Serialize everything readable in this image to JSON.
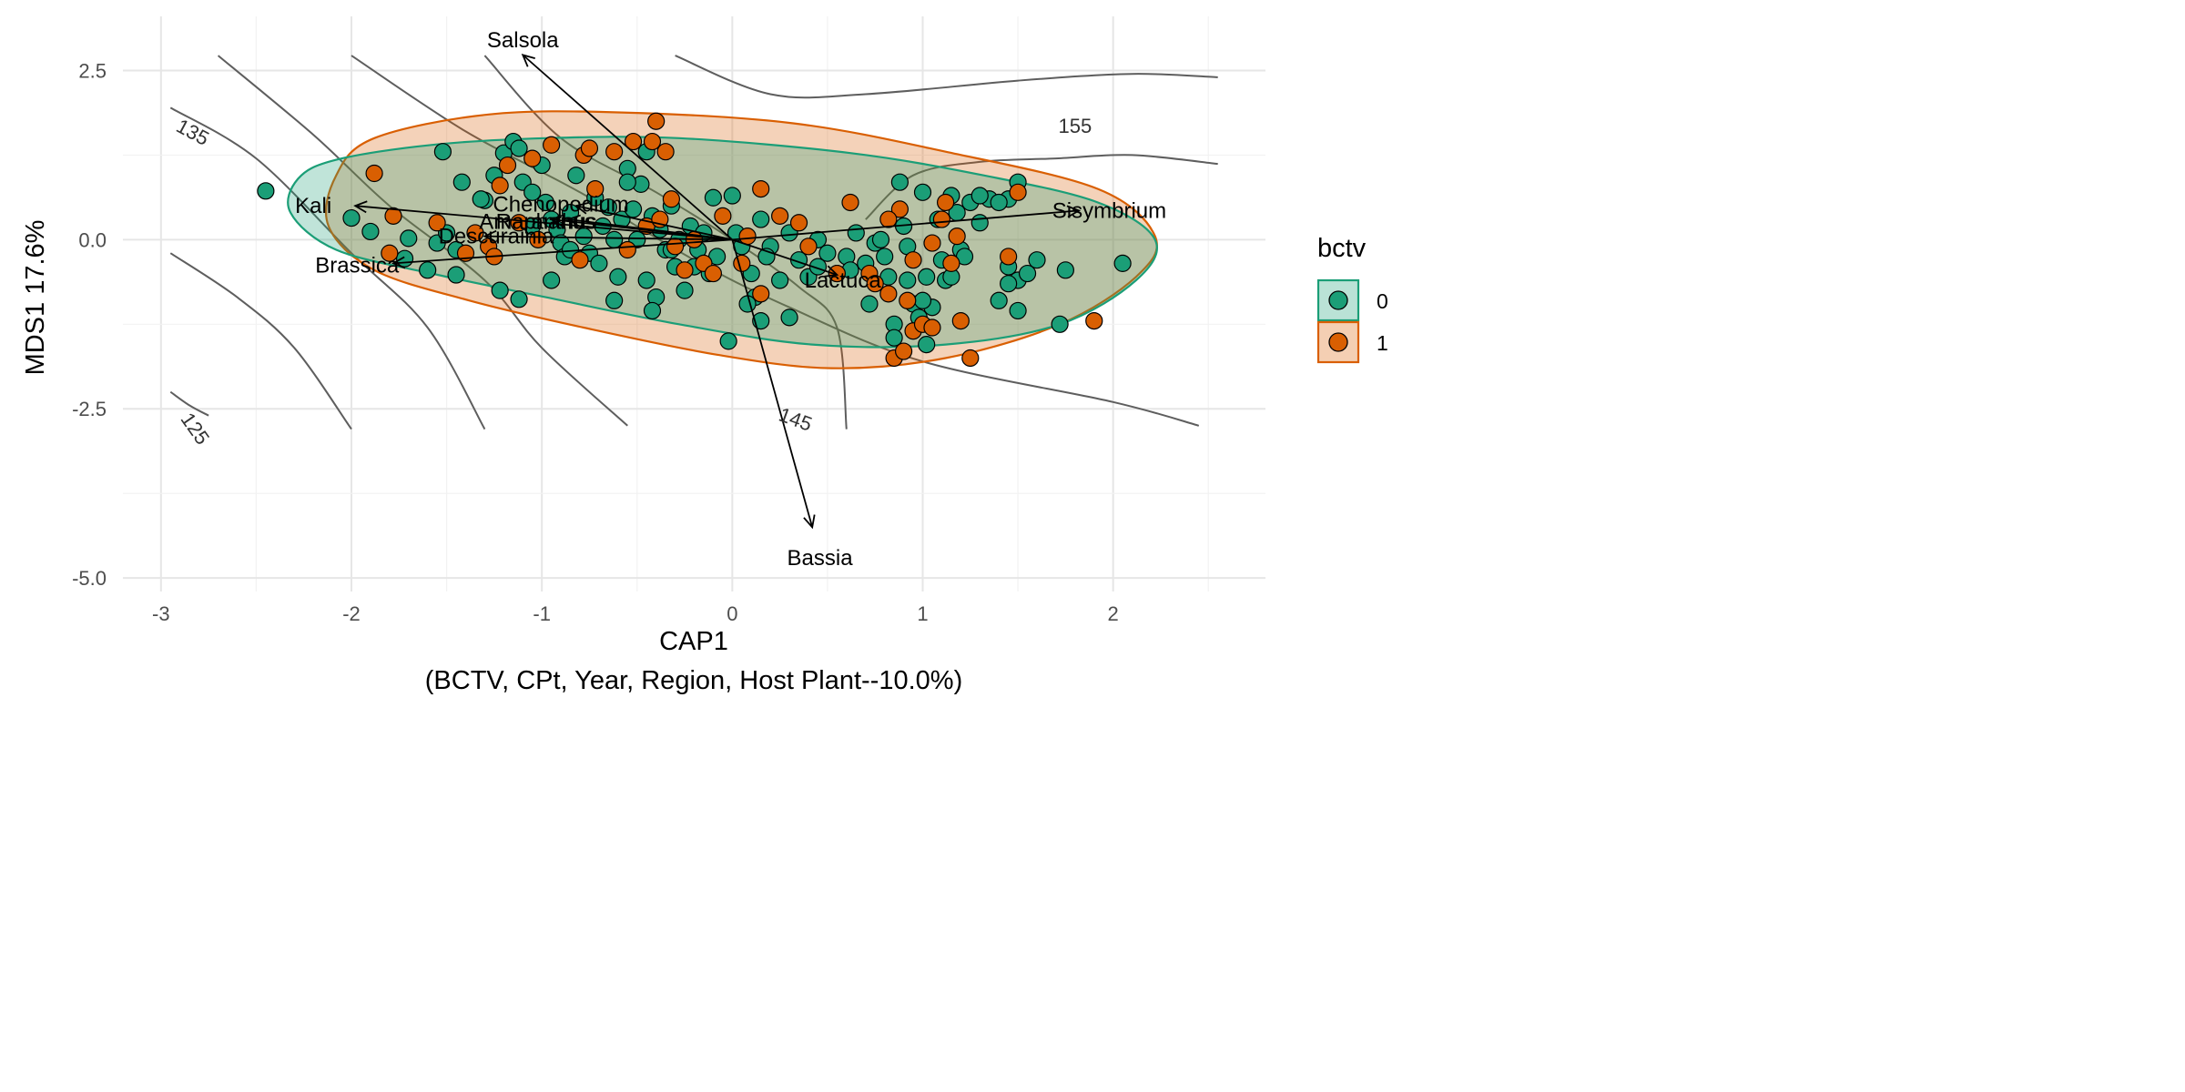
{
  "chart_data": {
    "type": "scatter",
    "title": "",
    "xlabel": "CAP1",
    "xlabel_sub": "(BCTV, CPt, Year, Region, Host Plant--10.0%)",
    "ylabel": "MDS1 17.6%",
    "xlim": [
      -3.2,
      2.8
    ],
    "ylim": [
      -5.2,
      3.3
    ],
    "x_ticks": [
      -3,
      -2,
      -1,
      0,
      1,
      2
    ],
    "y_ticks": [
      -5.0,
      -2.5,
      0.0,
      2.5
    ],
    "x_tick_labels": [
      "-3",
      "-2",
      "-1",
      "0",
      "1",
      "2"
    ],
    "y_tick_labels": [
      "-5.0",
      "-2.5",
      "0.0",
      "2.5"
    ],
    "grid": true,
    "legend": {
      "title": "bctv",
      "position": "right",
      "entries": [
        {
          "label": "0",
          "color": "#1b9e77"
        },
        {
          "label": "1",
          "color": "#d95f02"
        }
      ]
    },
    "series": [
      {
        "name": "0",
        "color": "#1b9e77",
        "points": [
          [
            -2.45,
            0.72
          ],
          [
            -2.0,
            0.32
          ],
          [
            -1.9,
            0.12
          ],
          [
            -1.7,
            0.02
          ],
          [
            -1.55,
            -0.05
          ],
          [
            -1.5,
            0.1
          ],
          [
            -1.45,
            -0.15
          ],
          [
            -1.45,
            -0.52
          ],
          [
            -1.3,
            0.58
          ],
          [
            -1.25,
            0.95
          ],
          [
            -1.2,
            1.28
          ],
          [
            -1.15,
            1.45
          ],
          [
            -1.12,
            1.35
          ],
          [
            -1.1,
            0.85
          ],
          [
            -1.05,
            0.7
          ],
          [
            -1.0,
            1.1
          ],
          [
            -0.98,
            0.55
          ],
          [
            -0.95,
            0.3
          ],
          [
            -0.92,
            0.15
          ],
          [
            -0.9,
            -0.05
          ],
          [
            -0.88,
            -0.25
          ],
          [
            -0.85,
            0.4
          ],
          [
            -0.82,
            0.95
          ],
          [
            -0.78,
            0.05
          ],
          [
            -0.75,
            -0.2
          ],
          [
            -0.72,
            0.62
          ],
          [
            -0.7,
            -0.35
          ],
          [
            -0.68,
            0.2
          ],
          [
            -0.65,
            0.48
          ],
          [
            -0.62,
            0.0
          ],
          [
            -0.6,
            -0.55
          ],
          [
            -0.58,
            0.3
          ],
          [
            -0.55,
            1.05
          ],
          [
            -0.52,
            0.45
          ],
          [
            -0.5,
            0.0
          ],
          [
            -0.48,
            0.82
          ],
          [
            -0.45,
            -0.6
          ],
          [
            -0.42,
            0.35
          ],
          [
            -0.4,
            -0.85
          ],
          [
            -0.38,
            0.15
          ],
          [
            -0.35,
            -0.15
          ],
          [
            -0.32,
            0.5
          ],
          [
            -0.3,
            -0.4
          ],
          [
            -0.28,
            0.0
          ],
          [
            -0.25,
            -0.75
          ],
          [
            -0.22,
            0.2
          ],
          [
            -0.2,
            -0.4
          ],
          [
            -0.18,
            -0.15
          ],
          [
            -0.15,
            0.1
          ],
          [
            -0.12,
            -0.5
          ],
          [
            -0.1,
            0.62
          ],
          [
            -0.08,
            -0.25
          ],
          [
            -1.52,
            1.3
          ],
          [
            -1.42,
            0.85
          ],
          [
            -1.32,
            0.6
          ],
          [
            -1.22,
            -0.75
          ],
          [
            -1.12,
            -0.88
          ],
          [
            -1.05,
            0.2
          ],
          [
            -0.95,
            -0.6
          ],
          [
            -0.85,
            -0.15
          ],
          [
            -0.62,
            -0.9
          ],
          [
            -0.55,
            0.85
          ],
          [
            -0.45,
            1.3
          ],
          [
            -0.42,
            -1.05
          ],
          [
            -0.32,
            -0.15
          ],
          [
            -1.6,
            -0.45
          ],
          [
            -1.72,
            -0.28
          ],
          [
            0.15,
            0.3
          ],
          [
            0.05,
            -0.1
          ],
          [
            0.1,
            -0.5
          ],
          [
            0.12,
            -0.85
          ],
          [
            0.15,
            -1.2
          ],
          [
            0.2,
            -0.1
          ],
          [
            0.25,
            -0.6
          ],
          [
            0.3,
            0.1
          ],
          [
            0.35,
            -0.3
          ],
          [
            0.4,
            -0.55
          ],
          [
            0.45,
            0.0
          ],
          [
            0.5,
            -0.2
          ],
          [
            0.55,
            -0.5
          ],
          [
            0.6,
            -0.25
          ],
          [
            0.65,
            0.1
          ],
          [
            0.7,
            -0.35
          ],
          [
            0.72,
            -0.95
          ],
          [
            0.75,
            -0.05
          ],
          [
            0.8,
            -0.25
          ],
          [
            0.82,
            -0.55
          ],
          [
            0.85,
            -1.25
          ],
          [
            0.88,
            0.85
          ],
          [
            0.9,
            0.2
          ],
          [
            0.92,
            -0.6
          ],
          [
            0.95,
            -0.95
          ],
          [
            0.98,
            -1.15
          ],
          [
            1.0,
            0.7
          ],
          [
            1.02,
            -0.55
          ],
          [
            1.05,
            -1.0
          ],
          [
            1.08,
            0.3
          ],
          [
            1.1,
            -0.3
          ],
          [
            1.12,
            -0.6
          ],
          [
            1.15,
            0.65
          ],
          [
            1.18,
            0.4
          ],
          [
            1.2,
            -0.15
          ],
          [
            1.25,
            0.55
          ],
          [
            1.3,
            0.25
          ],
          [
            1.35,
            0.6
          ],
          [
            1.4,
            -0.9
          ],
          [
            1.45,
            -0.4
          ],
          [
            1.45,
            0.6
          ],
          [
            1.5,
            0.85
          ],
          [
            1.5,
            -0.6
          ],
          [
            1.55,
            -0.5
          ],
          [
            1.6,
            -0.3
          ],
          [
            1.72,
            -1.25
          ],
          [
            1.75,
            -0.45
          ],
          [
            2.05,
            -0.35
          ],
          [
            0.0,
            0.65
          ],
          [
            0.08,
            -0.95
          ],
          [
            -0.02,
            -1.5
          ],
          [
            0.3,
            -1.15
          ],
          [
            0.45,
            -0.4
          ],
          [
            0.78,
            0.0
          ],
          [
            0.92,
            -0.1
          ],
          [
            1.0,
            -0.9
          ],
          [
            1.15,
            -0.55
          ],
          [
            1.22,
            -0.25
          ],
          [
            1.3,
            0.65
          ],
          [
            1.4,
            0.55
          ],
          [
            1.45,
            -0.65
          ],
          [
            1.5,
            -1.05
          ],
          [
            0.18,
            -0.25
          ],
          [
            0.02,
            0.1
          ],
          [
            0.62,
            -0.45
          ],
          [
            0.85,
            -1.45
          ],
          [
            1.02,
            -1.55
          ]
        ]
      },
      {
        "name": "1",
        "color": "#d95f02",
        "points": [
          [
            -1.88,
            0.98
          ],
          [
            -1.78,
            0.35
          ],
          [
            -1.8,
            -0.2
          ],
          [
            -1.55,
            0.25
          ],
          [
            -1.4,
            -0.2
          ],
          [
            -1.35,
            0.1
          ],
          [
            -1.28,
            -0.1
          ],
          [
            -1.22,
            0.8
          ],
          [
            -1.18,
            1.1
          ],
          [
            -1.12,
            0.25
          ],
          [
            -1.02,
            0.0
          ],
          [
            -0.95,
            1.4
          ],
          [
            -0.8,
            -0.3
          ],
          [
            -0.78,
            1.25
          ],
          [
            -0.75,
            1.35
          ],
          [
            -0.72,
            0.75
          ],
          [
            -0.62,
            1.3
          ],
          [
            -0.55,
            -0.15
          ],
          [
            -0.52,
            1.45
          ],
          [
            -0.45,
            0.2
          ],
          [
            -0.42,
            1.45
          ],
          [
            -0.4,
            1.75
          ],
          [
            -0.38,
            0.3
          ],
          [
            -0.35,
            1.3
          ],
          [
            -0.32,
            0.6
          ],
          [
            -0.25,
            -0.45
          ],
          [
            -0.2,
            0.0
          ],
          [
            -0.15,
            -0.35
          ],
          [
            -0.1,
            -0.5
          ],
          [
            -0.05,
            0.35
          ],
          [
            0.05,
            -0.35
          ],
          [
            0.15,
            0.75
          ],
          [
            0.25,
            0.35
          ],
          [
            0.35,
            0.25
          ],
          [
            0.4,
            -0.1
          ],
          [
            0.55,
            -0.5
          ],
          [
            0.62,
            0.55
          ],
          [
            0.72,
            -0.5
          ],
          [
            0.75,
            -0.65
          ],
          [
            0.82,
            -0.8
          ],
          [
            0.85,
            -1.75
          ],
          [
            0.88,
            0.45
          ],
          [
            0.9,
            -1.65
          ],
          [
            0.92,
            -0.9
          ],
          [
            0.95,
            -1.35
          ],
          [
            1.0,
            -1.25
          ],
          [
            1.05,
            -1.3
          ],
          [
            1.1,
            0.3
          ],
          [
            1.12,
            0.55
          ],
          [
            1.15,
            -0.35
          ],
          [
            1.18,
            0.05
          ],
          [
            1.2,
            -1.2
          ],
          [
            1.25,
            -1.75
          ],
          [
            1.45,
            -0.25
          ],
          [
            1.5,
            0.7
          ],
          [
            1.9,
            -1.2
          ],
          [
            0.15,
            -0.8
          ],
          [
            -1.25,
            -0.25
          ],
          [
            -1.05,
            1.2
          ],
          [
            0.08,
            0.05
          ],
          [
            0.82,
            0.3
          ],
          [
            0.95,
            -0.3
          ],
          [
            1.05,
            -0.05
          ],
          [
            -0.3,
            -0.1
          ]
        ]
      }
    ],
    "ellipses": [
      {
        "group": "1",
        "color": "#d95f02",
        "cx": 0.08,
        "cy": 0.0,
        "pts": [
          [
            -2.08,
            0.95
          ],
          [
            -1.88,
            1.5
          ],
          [
            -1.28,
            1.85
          ],
          [
            -0.58,
            1.88
          ],
          [
            0.32,
            1.72
          ],
          [
            1.12,
            1.3
          ],
          [
            1.92,
            0.75
          ],
          [
            2.22,
            0.05
          ],
          [
            2.12,
            -0.55
          ],
          [
            1.72,
            -1.25
          ],
          [
            1.12,
            -1.75
          ],
          [
            0.52,
            -1.9
          ],
          [
            -0.08,
            -1.7
          ],
          [
            -0.78,
            -1.3
          ],
          [
            -1.38,
            -0.9
          ],
          [
            -1.88,
            -0.45
          ],
          [
            -2.12,
            0.2
          ]
        ]
      },
      {
        "group": "0",
        "color": "#1b9e77",
        "cx": 0.08,
        "cy": 0.0,
        "pts": [
          [
            -2.28,
            0.9
          ],
          [
            -2.08,
            1.18
          ],
          [
            -1.58,
            1.4
          ],
          [
            -0.98,
            1.5
          ],
          [
            -0.28,
            1.5
          ],
          [
            0.62,
            1.28
          ],
          [
            1.32,
            0.95
          ],
          [
            1.92,
            0.55
          ],
          [
            2.22,
            0.0
          ],
          [
            2.12,
            -0.6
          ],
          [
            1.72,
            -1.25
          ],
          [
            1.12,
            -1.55
          ],
          [
            0.42,
            -1.55
          ],
          [
            -0.28,
            -1.25
          ],
          [
            -0.98,
            -0.85
          ],
          [
            -1.58,
            -0.5
          ],
          [
            -2.08,
            -0.15
          ],
          [
            -2.32,
            0.4
          ]
        ]
      }
    ],
    "vectors": [
      {
        "label": "Salsola",
        "x": -1.1,
        "y": 2.73,
        "label_x": -1.1,
        "label_y": 2.95
      },
      {
        "label": "Kali",
        "x": -1.98,
        "y": 0.5,
        "label_x": -2.2,
        "label_y": 0.5
      },
      {
        "label": "Brassica",
        "x": -1.78,
        "y": -0.35,
        "label_x": -1.97,
        "label_y": -0.38
      },
      {
        "label": "Chenopodium",
        "x": -0.82,
        "y": 0.5,
        "label_x": -0.9,
        "label_y": 0.52
      },
      {
        "label": "Amaranthus",
        "x": -0.95,
        "y": 0.3,
        "label_x": -1.02,
        "label_y": 0.27
      },
      {
        "label": "Raphanus",
        "x": -0.86,
        "y": 0.3,
        "label_x": -0.98,
        "label_y": 0.27
      },
      {
        "label": "Descurainia",
        "x": -1.3,
        "y": 0.05,
        "label_x": -1.24,
        "label_y": 0.05
      },
      {
        "label": "Sisymbrium",
        "x": 1.82,
        "y": 0.43,
        "label_x": 1.98,
        "label_y": 0.43
      },
      {
        "label": "Lactuca",
        "x": 0.55,
        "y": -0.52,
        "label_x": 0.58,
        "label_y": -0.6
      },
      {
        "label": "Bassia",
        "x": 0.42,
        "y": -4.25,
        "label_x": 0.46,
        "label_y": -4.7
      }
    ],
    "contours": [
      {
        "level": "125",
        "pts": [
          [
            -2.95,
            -2.25
          ],
          [
            -2.85,
            -2.45
          ],
          [
            -2.75,
            -2.6
          ]
        ],
        "pts_b": [
          [
            -2.95,
            -0.2
          ],
          [
            -2.6,
            -0.85
          ],
          [
            -2.3,
            -1.6
          ],
          [
            -2.0,
            -2.8
          ]
        ]
      },
      {
        "level": "135",
        "pts": [
          [
            -2.95,
            1.95
          ],
          [
            -2.5,
            1.2
          ],
          [
            -2.0,
            -0.2
          ],
          [
            -1.6,
            -1.3
          ],
          [
            -1.3,
            -2.8
          ]
        ]
      },
      {
        "level": "",
        "pts": [
          [
            -2.7,
            2.72
          ],
          [
            -2.2,
            1.55
          ],
          [
            -1.8,
            0.5
          ],
          [
            -1.3,
            -0.6
          ],
          [
            -1.0,
            -1.6
          ],
          [
            -0.55,
            -2.75
          ]
        ]
      },
      {
        "level": "",
        "pts": [
          [
            -2.0,
            2.72
          ],
          [
            -1.4,
            1.6
          ],
          [
            -0.8,
            0.7
          ],
          [
            -0.2,
            -0.3
          ],
          [
            0.3,
            -1.0
          ],
          [
            1.0,
            -1.8
          ],
          [
            2.0,
            -2.4
          ],
          [
            2.45,
            -2.75
          ]
        ]
      },
      {
        "level": "145",
        "pts": [
          [
            -1.3,
            2.72
          ],
          [
            -0.9,
            1.5
          ],
          [
            -0.4,
            0.7
          ],
          [
            0.0,
            0.0
          ],
          [
            0.35,
            -0.7
          ],
          [
            0.55,
            -1.3
          ],
          [
            0.6,
            -2.8
          ]
        ]
      },
      {
        "level": "155",
        "pts": [
          [
            -0.3,
            2.72
          ],
          [
            0.2,
            2.15
          ],
          [
            0.7,
            2.15
          ],
          [
            1.5,
            2.35
          ],
          [
            2.1,
            2.45
          ],
          [
            2.55,
            2.4
          ]
        ]
      },
      {
        "level": "",
        "pts": [
          [
            0.7,
            0.3
          ],
          [
            0.95,
            0.95
          ],
          [
            1.3,
            1.15
          ],
          [
            1.7,
            1.2
          ],
          [
            2.1,
            1.25
          ],
          [
            2.55,
            1.12
          ]
        ]
      }
    ]
  }
}
